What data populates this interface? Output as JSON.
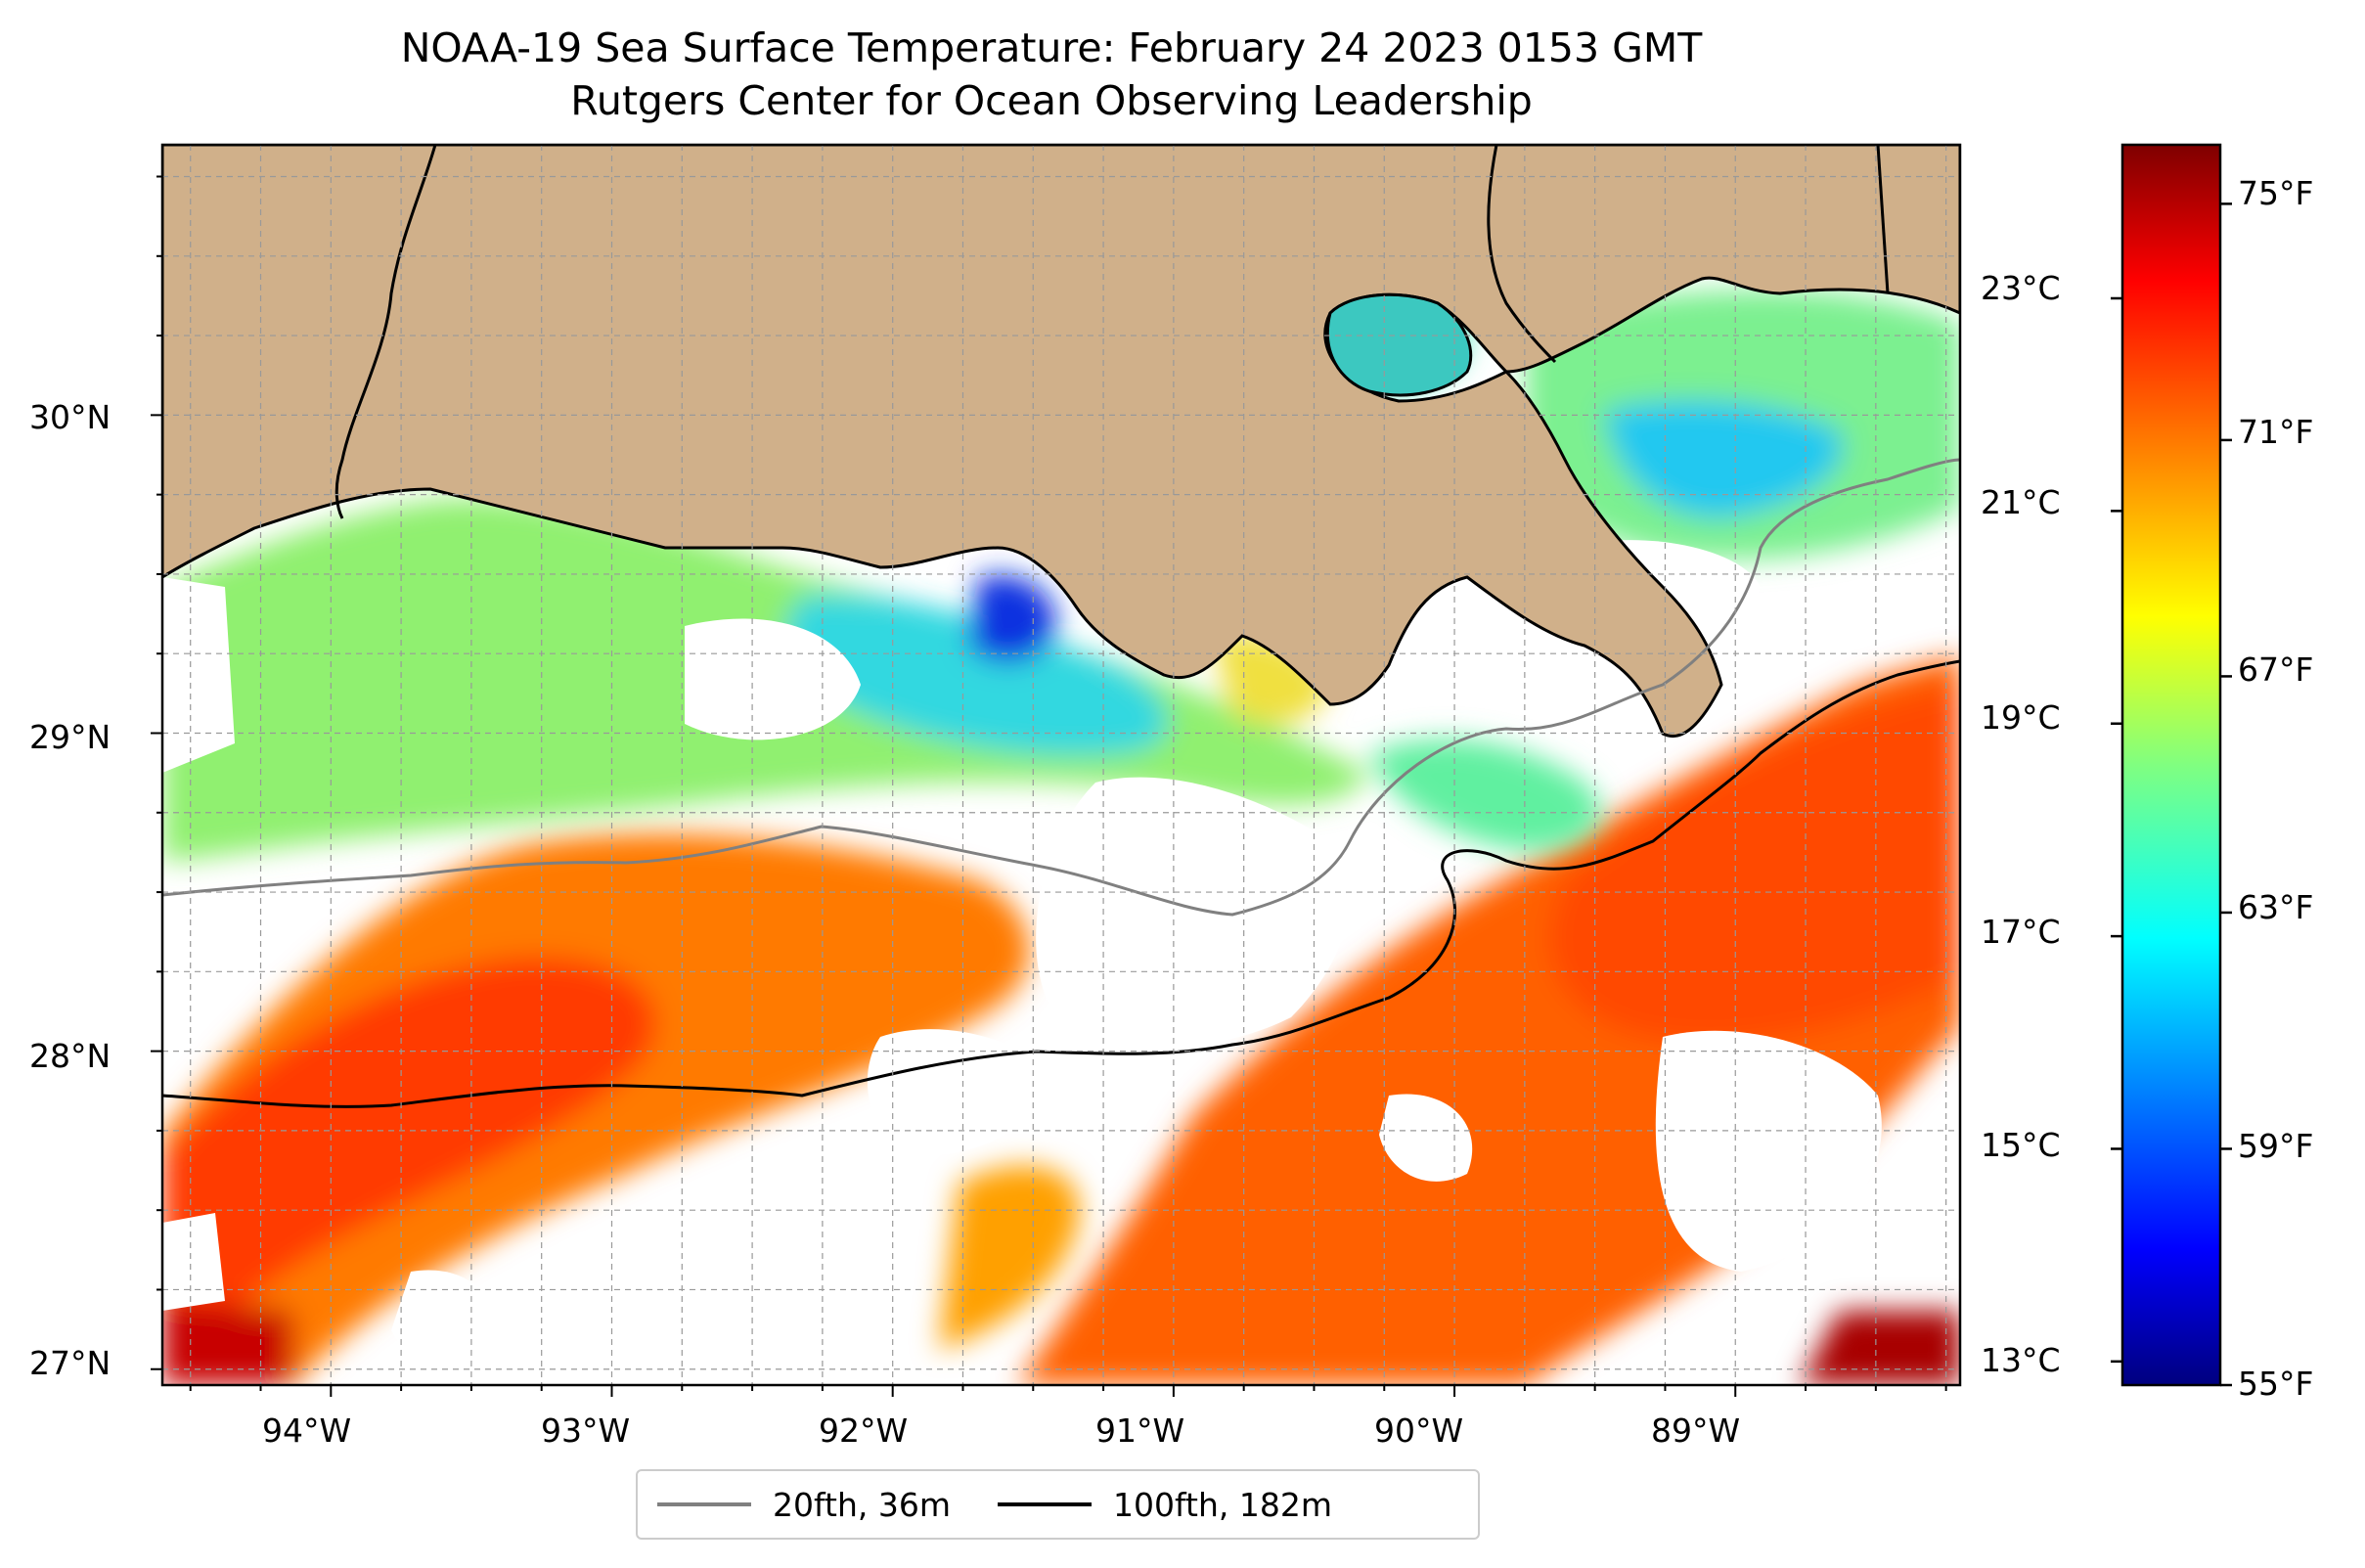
{
  "title": {
    "line1": "NOAA-19 Sea Surface Temperature: February 24 2023 0153 GMT",
    "line2": "Rutgers Center for Ocean Observing Leadership"
  },
  "map": {
    "region": "Northern Gulf of Mexico (Louisiana shelf)",
    "lon_range": [
      -94.6,
      -88.2
    ],
    "lat_range": [
      26.95,
      30.85
    ],
    "lon_ticks": [
      "94°W",
      "93°W",
      "92°W",
      "91°W",
      "90°W",
      "89°W"
    ],
    "lat_ticks": [
      "27°N",
      "28°N",
      "29°N",
      "30°N"
    ],
    "gridlines": true,
    "land_color": "#d0b08a",
    "no_data_color": "#ffffff"
  },
  "colorbar": {
    "colormap": "jet",
    "fahrenheit_ticks": [
      "75°F",
      "71°F",
      "67°F",
      "63°F",
      "59°F",
      "55°F"
    ],
    "celsius_ticks": [
      "23°C",
      "21°C",
      "19°C",
      "17°C",
      "15°C",
      "13°C"
    ],
    "range_f": [
      55,
      76
    ]
  },
  "legend": {
    "items": [
      {
        "label": "20fth, 36m",
        "color": "#808080"
      },
      {
        "label": "100fth, 182m",
        "color": "#000000"
      }
    ]
  }
}
